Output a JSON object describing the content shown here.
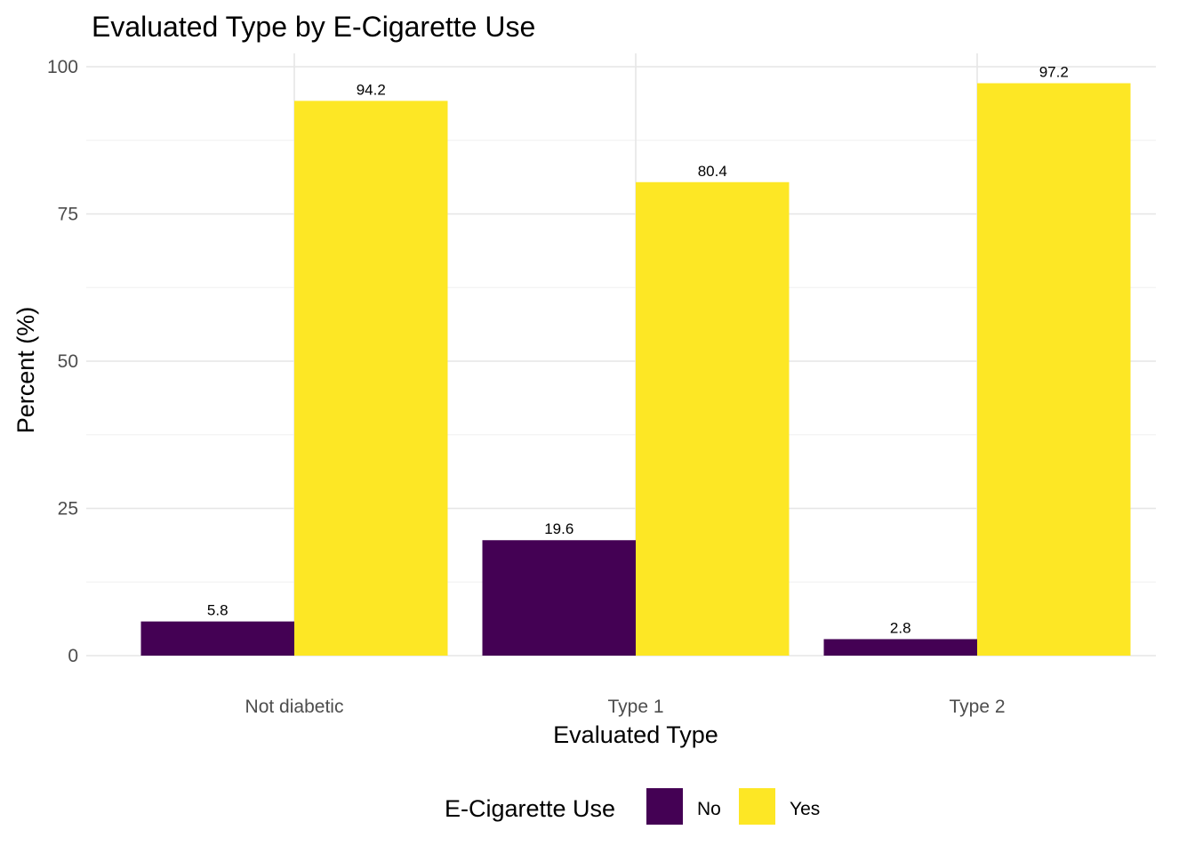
{
  "chart_data": {
    "type": "bar",
    "title": "Evaluated Type by E-Cigarette Use",
    "xlabel": "Evaluated Type",
    "ylabel": "Percent (%)",
    "categories": [
      "Not diabetic",
      "Type 1",
      "Type 2"
    ],
    "series": [
      {
        "name": "No",
        "values": [
          5.8,
          19.6,
          2.8
        ],
        "labels": [
          "5.8",
          "19.6",
          "2.8"
        ],
        "color": "#440154"
      },
      {
        "name": "Yes",
        "values": [
          94.2,
          80.4,
          97.2
        ],
        "labels": [
          "94.2",
          "80.4",
          "97.2"
        ],
        "color": "#FDE725"
      }
    ],
    "ylim": [
      0,
      100
    ],
    "yticks": [
      0,
      25,
      50,
      75,
      100
    ],
    "ytick_labels": [
      "0",
      "25",
      "50",
      "75",
      "100"
    ],
    "grid": true,
    "legend": {
      "title": "E-Cigarette Use",
      "position": "bottom"
    }
  }
}
